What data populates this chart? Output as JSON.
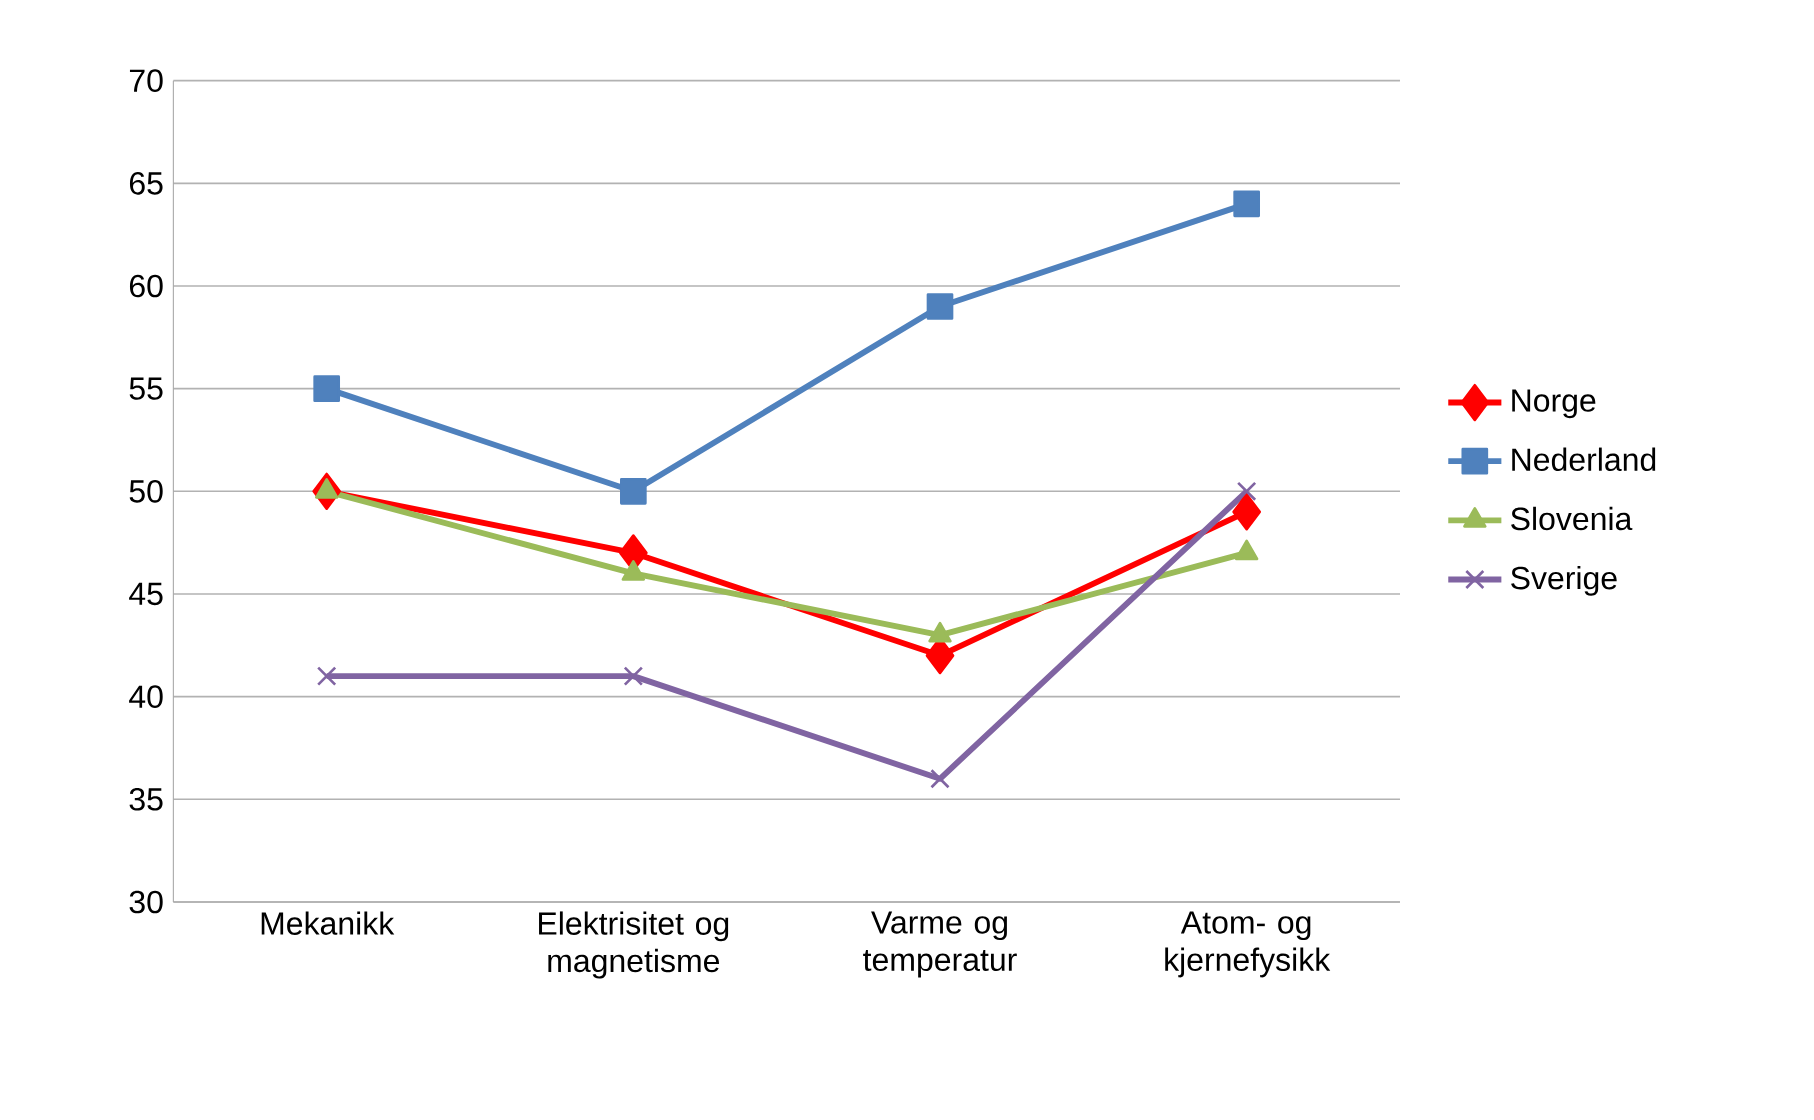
{
  "chart_data": {
    "type": "line",
    "categories": [
      "Mekanikk",
      "Elektrisitet og magnetisme",
      "Varme og temperatur",
      "Atom- og kjernefysikk"
    ],
    "series": [
      {
        "name": "Norge",
        "color": "#ff0000",
        "marker": "diamond",
        "values": [
          50,
          47,
          42,
          49
        ]
      },
      {
        "name": "Nederland",
        "color": "#4f81bd",
        "marker": "square",
        "values": [
          55,
          50,
          59,
          64
        ]
      },
      {
        "name": "Slovenia",
        "color": "#9bbb59",
        "marker": "triangle",
        "values": [
          50,
          46,
          43,
          47
        ]
      },
      {
        "name": "Sverige",
        "color": "#8064a2",
        "marker": "cross",
        "values": [
          41,
          41,
          36,
          50
        ]
      }
    ],
    "ylim": [
      30,
      70
    ],
    "yticks": [
      30,
      35,
      40,
      45,
      50,
      55,
      60,
      65,
      70
    ],
    "grid": "y",
    "legend": "right"
  }
}
